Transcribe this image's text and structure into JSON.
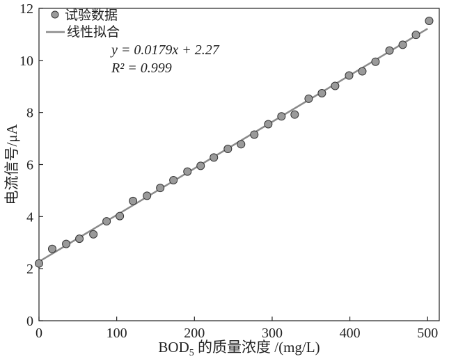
{
  "chart_data": {
    "type": "scatter",
    "xlabel_main": "BOD",
    "xlabel_sub": "5",
    "xlabel_rest": " 的质量浓度 /(mg/L)",
    "ylabel": "电流信号/μA",
    "xlim": [
      0,
      515
    ],
    "ylim": [
      0,
      12
    ],
    "xticks": [
      0,
      100,
      200,
      300,
      400,
      500
    ],
    "yticks": [
      0,
      2,
      4,
      6,
      8,
      10,
      12
    ],
    "grid": false,
    "legend_position": "top-left",
    "legend": {
      "scatter": "试验数据",
      "line": "线性拟合"
    },
    "annotation": {
      "equation": "y = 0.0179x + 2.27",
      "r2": "R² = 0.999"
    },
    "fit": {
      "slope": 0.0179,
      "intercept": 2.27,
      "x_range": [
        0,
        500
      ]
    },
    "series": [
      {
        "name": "试验数据",
        "x": [
          0,
          17,
          35,
          52,
          70,
          87,
          104,
          121,
          139,
          156,
          173,
          191,
          208,
          225,
          243,
          260,
          277,
          295,
          312,
          329,
          347,
          364,
          381,
          399,
          416,
          433,
          451,
          468,
          485,
          502
        ],
        "y": [
          2.2,
          2.76,
          2.95,
          3.15,
          3.32,
          3.82,
          4.02,
          4.6,
          4.8,
          5.1,
          5.4,
          5.73,
          5.95,
          6.27,
          6.6,
          6.78,
          7.15,
          7.55,
          7.85,
          7.92,
          8.53,
          8.74,
          9.02,
          9.42,
          9.58,
          9.95,
          10.38,
          10.6,
          10.98,
          11.52
        ]
      }
    ],
    "colors": {
      "marker_fill": "#9a9a9a",
      "marker_stroke": "#333333",
      "fit_line": "#8a8a8a",
      "axis": "#222222"
    }
  }
}
